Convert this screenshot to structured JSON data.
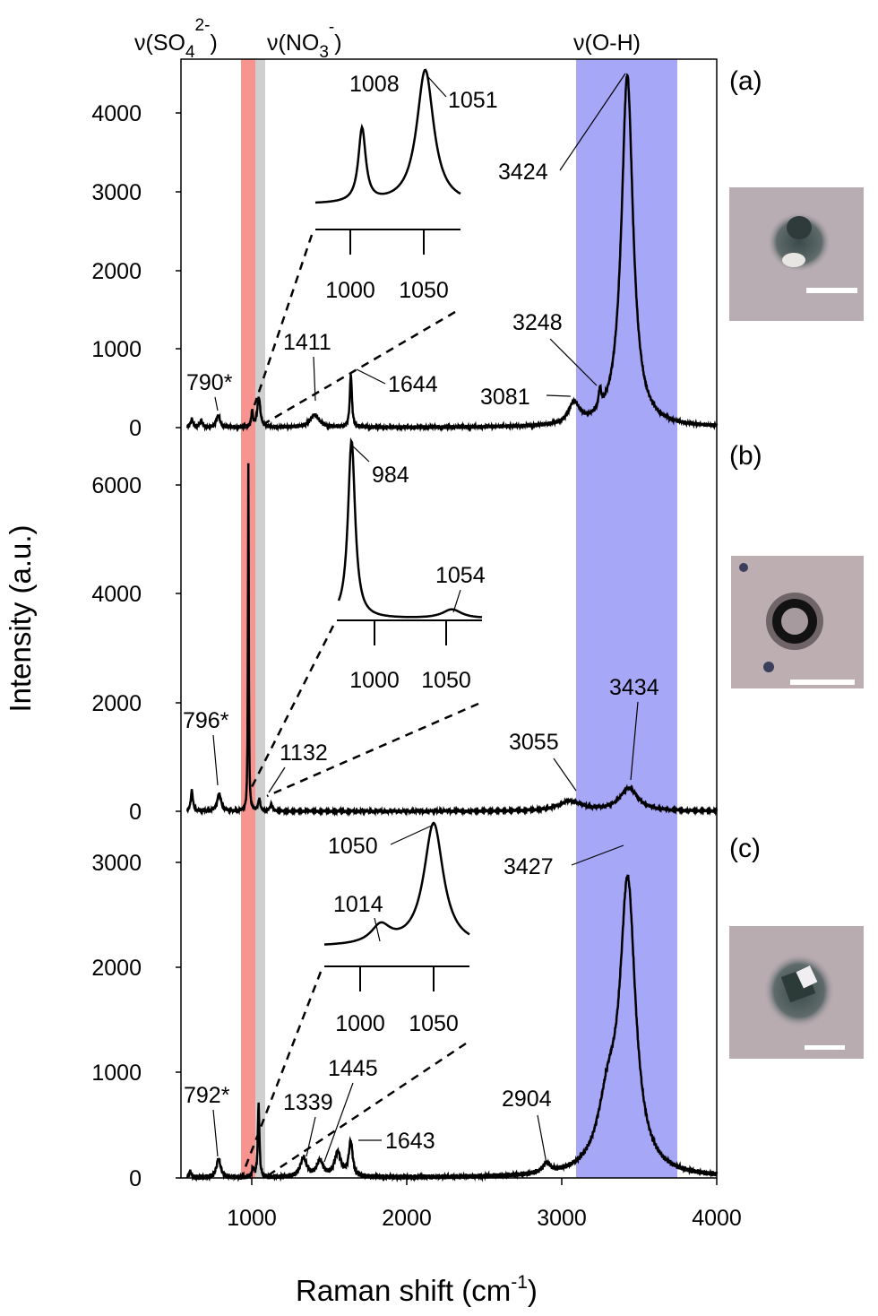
{
  "figure": {
    "ylabel": "Intensity (a.u.)",
    "xlabel_main": "Raman shift (cm",
    "xlabel_sup": "-1",
    "xlabel_close": ")",
    "colors": {
      "sulfate_band": "#f7948f",
      "nitrate_band": "#cfcfcf",
      "oh_band": "#a7a7f7",
      "trace": "#000000"
    },
    "band_labels": {
      "sulfate_prefix": "ν(SO",
      "sulfate_sub": "4",
      "sulfate_sup": "2-",
      "sulfate_close": ")",
      "nitrate_prefix": "ν(NO",
      "nitrate_sub": "3",
      "nitrate_sup": "-",
      "nitrate_close": ")",
      "oh": "ν(O-H)"
    },
    "x_ticks": [
      "1000",
      "2000",
      "3000",
      "4000"
    ],
    "insets": {
      "a_ticks": [
        "1000",
        "1050"
      ],
      "b_ticks": [
        "1000",
        "1050"
      ],
      "c_ticks": [
        "1000",
        "1050"
      ]
    }
  },
  "chart_data": [
    {
      "type": "line",
      "panel": "(a)",
      "xlim": [
        550,
        4000
      ],
      "ylim": [
        0,
        4600
      ],
      "y_ticks": [
        "0",
        "1000",
        "2000",
        "3000",
        "4000"
      ],
      "highlight_bands": [
        {
          "name": "ν(SO4 2-)",
          "x": [
            950,
            1040
          ]
        },
        {
          "name": "ν(NO3 -)",
          "x": [
            1040,
            1100
          ]
        },
        {
          "name": "ν(O-H)",
          "x": [
            3090,
            3740
          ]
        }
      ],
      "peaks": [
        {
          "x": 620,
          "y": 100,
          "w": 10
        },
        {
          "x": 680,
          "y": 80,
          "w": 10
        },
        {
          "x": 790,
          "y": 150,
          "w": 14
        },
        {
          "x": 1008,
          "y": 200,
          "w": 6
        },
        {
          "x": 1051,
          "y": 380,
          "w": 12
        },
        {
          "x": 1411,
          "y": 160,
          "w": 35
        },
        {
          "x": 1644,
          "y": 670,
          "w": 8
        },
        {
          "x": 3081,
          "y": 270,
          "w": 40
        },
        {
          "x": 3248,
          "y": 240,
          "w": 10
        },
        {
          "x": 3424,
          "y": 4480,
          "w": 45
        }
      ],
      "peak_labels": [
        "790*",
        "1411",
        "1644",
        "3081",
        "3248",
        "3424"
      ],
      "inset": {
        "x_ticks": [
          1000,
          1050
        ],
        "peaks": [
          {
            "x": 1008,
            "height": 0.55,
            "w": 3
          },
          {
            "x": 1051,
            "height": 1.0,
            "w": 7
          }
        ],
        "peak_labels": [
          "1008",
          "1051"
        ]
      }
    },
    {
      "type": "line",
      "panel": "(b)",
      "xlim": [
        550,
        4000
      ],
      "ylim": [
        0,
        7000
      ],
      "y_ticks": [
        "0",
        "2000",
        "4000",
        "6000"
      ],
      "highlight_bands": [
        {
          "name": "ν(SO4 2-)",
          "x": [
            950,
            1040
          ]
        },
        {
          "name": "ν(NO3 -)",
          "x": [
            1040,
            1100
          ]
        },
        {
          "name": "ν(O-H)",
          "x": [
            3090,
            3740
          ]
        }
      ],
      "peaks": [
        {
          "x": 620,
          "y": 380,
          "w": 8
        },
        {
          "x": 796,
          "y": 320,
          "w": 15
        },
        {
          "x": 984,
          "y": 6400,
          "w": 3
        },
        {
          "x": 1054,
          "y": 220,
          "w": 8
        },
        {
          "x": 1132,
          "y": 120,
          "w": 10
        },
        {
          "x": 3055,
          "y": 180,
          "w": 90
        },
        {
          "x": 3434,
          "y": 420,
          "w": 70
        }
      ],
      "peak_labels": [
        "796*",
        "1132",
        "3055",
        "3434"
      ],
      "inset": {
        "x_ticks": [
          1000,
          1050
        ],
        "peaks": [
          {
            "x": 984,
            "height": 1.0,
            "w": 3
          },
          {
            "x": 1054,
            "height": 0.05,
            "w": 8
          }
        ],
        "peak_labels": [
          "984",
          "1054"
        ]
      }
    },
    {
      "type": "line",
      "panel": "(c)",
      "xlim": [
        550,
        4000
      ],
      "ylim": [
        0,
        3400
      ],
      "y_ticks": [
        "0",
        "1000",
        "2000",
        "3000"
      ],
      "highlight_bands": [
        {
          "name": "ν(SO4 2-)",
          "x": [
            950,
            1040
          ]
        },
        {
          "name": "ν(NO3 -)",
          "x": [
            1040,
            1100
          ]
        },
        {
          "name": "ν(O-H)",
          "x": [
            3090,
            3740
          ]
        }
      ],
      "peaks": [
        {
          "x": 610,
          "y": 60,
          "w": 8
        },
        {
          "x": 792,
          "y": 180,
          "w": 16
        },
        {
          "x": 1014,
          "y": 80,
          "w": 8
        },
        {
          "x": 1050,
          "y": 700,
          "w": 6
        },
        {
          "x": 1339,
          "y": 180,
          "w": 25
        },
        {
          "x": 1445,
          "y": 150,
          "w": 25
        },
        {
          "x": 1560,
          "y": 230,
          "w": 25
        },
        {
          "x": 1643,
          "y": 330,
          "w": 15
        },
        {
          "x": 2904,
          "y": 90,
          "w": 30
        },
        {
          "x": 3300,
          "y": 600,
          "w": 80
        },
        {
          "x": 3427,
          "y": 2700,
          "w": 60
        }
      ],
      "peak_labels": [
        "792*",
        "1339",
        "1445",
        "1643",
        "2904",
        "3427"
      ],
      "inset": {
        "x_ticks": [
          1000,
          1050
        ],
        "peaks": [
          {
            "x": 1014,
            "height": 0.15,
            "w": 8
          },
          {
            "x": 1050,
            "height": 1.0,
            "w": 8
          }
        ],
        "peak_labels": [
          "1014",
          "1050"
        ]
      }
    }
  ]
}
